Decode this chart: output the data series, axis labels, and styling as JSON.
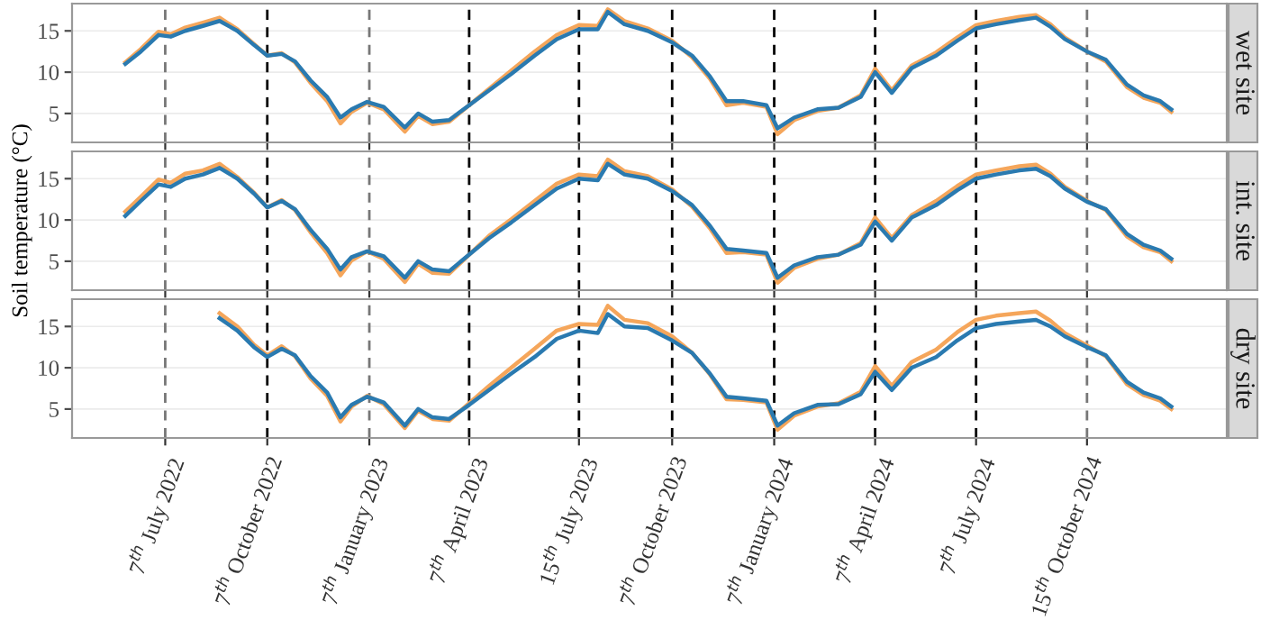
{
  "chart_data": [
    {
      "type": "line",
      "title": "wet site",
      "tick_labels": "y",
      "grid": "y",
      "line_style": "solid",
      "x": [
        "2022-06-01",
        "2022-06-15",
        "2022-07-01",
        "2022-07-12",
        "2022-07-25",
        "2022-08-10",
        "2022-08-25",
        "2022-09-10",
        "2022-09-25",
        "2022-10-07",
        "2022-10-20",
        "2022-11-01",
        "2022-11-15",
        "2022-11-30",
        "2022-12-12",
        "2022-12-22",
        "2023-01-05",
        "2023-01-20",
        "2023-02-08",
        "2023-02-20",
        "2023-03-05",
        "2023-03-20",
        "2023-04-07",
        "2023-04-25",
        "2023-05-15",
        "2023-06-05",
        "2023-06-25",
        "2023-07-15",
        "2023-08-01",
        "2023-08-10",
        "2023-08-25",
        "2023-09-15",
        "2023-10-07",
        "2023-10-25",
        "2023-11-10",
        "2023-11-25",
        "2023-12-10",
        "2023-12-31",
        "2024-01-10",
        "2024-01-25",
        "2024-02-15",
        "2024-03-05",
        "2024-03-25",
        "2024-04-07",
        "2024-04-22",
        "2024-05-10",
        "2024-06-01",
        "2024-06-20",
        "2024-07-07",
        "2024-07-25",
        "2024-08-15",
        "2024-08-30",
        "2024-09-12",
        "2024-09-25",
        "2024-10-15",
        "2024-11-01",
        "2024-11-20",
        "2024-12-05",
        "2024-12-20",
        "2024-12-30"
      ],
      "series": [
        {
          "color": "#f5a65b",
          "values": [
            11.2,
            12.8,
            14.9,
            14.6,
            15.4,
            16,
            16.6,
            15.2,
            13.4,
            12,
            12.3,
            11.2,
            8.7,
            6.5,
            3.8,
            5.2,
            6.3,
            5.5,
            2.8,
            4.7,
            3.7,
            4,
            6,
            8,
            10.2,
            12.5,
            14.5,
            15.7,
            15.6,
            17.6,
            16.2,
            15.3,
            13.8,
            11.8,
            9.2,
            6,
            6.3,
            5.8,
            2.5,
            4.2,
            5.3,
            5.7,
            7.2,
            10.4,
            7.8,
            10.8,
            12.4,
            14.2,
            15.7,
            16.2,
            16.7,
            16.9,
            15.8,
            14.2,
            12.5,
            11.3,
            8.2,
            6.9,
            6.3,
            5.2
          ]
        },
        {
          "color": "#2a7ab0",
          "values": [
            11,
            12.5,
            14.5,
            14.3,
            15,
            15.6,
            16.2,
            15,
            13.3,
            12,
            12.2,
            11.3,
            9,
            7,
            4.5,
            5.5,
            6.4,
            5.8,
            3.3,
            5,
            4,
            4.2,
            6,
            7.8,
            9.8,
            12,
            14,
            15.2,
            15.2,
            17.3,
            15.8,
            15,
            13.6,
            12,
            9.5,
            6.5,
            6.5,
            6,
            3.2,
            4.5,
            5.5,
            5.7,
            7,
            10,
            7.5,
            10.5,
            12,
            13.8,
            15.3,
            15.8,
            16.3,
            16.6,
            15.5,
            14,
            12.5,
            11.5,
            8.5,
            7.2,
            6.5,
            5.5
          ]
        }
      ],
      "xlim": [
        "2022-04-14",
        "2025-02-18"
      ],
      "ylim": [
        1.5,
        18.3
      ],
      "yticks": [
        5,
        10,
        15
      ],
      "xticks": [
        {
          "value": "2022-07-07",
          "label": null
        },
        {
          "value": "2022-10-07",
          "label": null
        },
        {
          "value": "2023-01-07",
          "label": null
        },
        {
          "value": "2023-04-07",
          "label": null
        },
        {
          "value": "2023-07-15",
          "label": null
        },
        {
          "value": "2023-10-07",
          "label": null
        },
        {
          "value": "2024-01-07",
          "label": null
        },
        {
          "value": "2024-04-07",
          "label": null
        },
        {
          "value": "2024-07-07",
          "label": null
        },
        {
          "value": "2024-10-15",
          "label": null
        }
      ],
      "ref_lines": [
        {
          "axis": "x",
          "value": "2022-07-07",
          "color": "#777777",
          "line_style": "dashed"
        },
        {
          "axis": "x",
          "value": "2022-10-07",
          "color": "#000000",
          "line_style": "dashed"
        },
        {
          "axis": "x",
          "value": "2023-01-07",
          "color": "#777777",
          "line_style": "dashed"
        },
        {
          "axis": "x",
          "value": "2023-04-07",
          "color": "#000000",
          "line_style": "dashed"
        },
        {
          "axis": "x",
          "value": "2023-07-15",
          "color": "#000000",
          "line_style": "dashed"
        },
        {
          "axis": "x",
          "value": "2023-10-07",
          "color": "#000000",
          "line_style": "dashed"
        },
        {
          "axis": "x",
          "value": "2024-01-07",
          "color": "#000000",
          "line_style": "dashed"
        },
        {
          "axis": "x",
          "value": "2024-04-07",
          "color": "#000000",
          "line_style": "dashed"
        },
        {
          "axis": "x",
          "value": "2024-07-07",
          "color": "#000000",
          "line_style": "dashed"
        },
        {
          "axis": "x",
          "value": "2024-10-15",
          "color": "#777777",
          "line_style": "dashed"
        }
      ]
    },
    {
      "type": "line",
      "title": "int. site",
      "ylabel": "Soil temperature (°C)",
      "tick_labels": "y",
      "grid": "y",
      "line_style": "solid",
      "x": [
        "2022-06-01",
        "2022-06-15",
        "2022-07-01",
        "2022-07-12",
        "2022-07-25",
        "2022-08-10",
        "2022-08-25",
        "2022-09-10",
        "2022-09-25",
        "2022-10-07",
        "2022-10-20",
        "2022-11-01",
        "2022-11-15",
        "2022-11-30",
        "2022-12-12",
        "2022-12-22",
        "2023-01-05",
        "2023-01-20",
        "2023-02-08",
        "2023-02-20",
        "2023-03-05",
        "2023-03-20",
        "2023-04-07",
        "2023-04-25",
        "2023-05-15",
        "2023-06-05",
        "2023-06-25",
        "2023-07-15",
        "2023-08-01",
        "2023-08-10",
        "2023-08-25",
        "2023-09-15",
        "2023-10-07",
        "2023-10-25",
        "2023-11-10",
        "2023-11-25",
        "2023-12-10",
        "2023-12-31",
        "2024-01-10",
        "2024-01-25",
        "2024-02-15",
        "2024-03-05",
        "2024-03-25",
        "2024-04-07",
        "2024-04-22",
        "2024-05-10",
        "2024-06-01",
        "2024-06-20",
        "2024-07-07",
        "2024-07-25",
        "2024-08-15",
        "2024-08-30",
        "2024-09-12",
        "2024-09-25",
        "2024-10-15",
        "2024-11-01",
        "2024-11-20",
        "2024-12-05",
        "2024-12-20",
        "2024-12-30"
      ],
      "series": [
        {
          "color": "#f5a65b",
          "values": [
            11,
            12.8,
            14.9,
            14.5,
            15.6,
            16,
            16.8,
            15.2,
            13.3,
            11.5,
            12.4,
            11.2,
            8.5,
            6,
            3.3,
            5.1,
            6.2,
            5.3,
            2.5,
            4.7,
            3.6,
            3.5,
            5.8,
            8.1,
            10.1,
            12.3,
            14.4,
            15.5,
            15.3,
            17.3,
            15.9,
            15.3,
            13.7,
            11.6,
            9,
            6,
            6.1,
            5.8,
            2.4,
            4.2,
            5.3,
            5.8,
            7.2,
            10.3,
            7.8,
            10.6,
            12.3,
            14.1,
            15.5,
            16,
            16.5,
            16.7,
            15.6,
            14,
            12.3,
            11.2,
            8,
            6.7,
            6.1,
            5
          ]
        },
        {
          "color": "#2a7ab0",
          "values": [
            10.5,
            12.3,
            14.3,
            14,
            15,
            15.5,
            16.3,
            15,
            13.2,
            11.5,
            12.3,
            11.3,
            8.8,
            6.5,
            4,
            5.5,
            6.2,
            5.6,
            3,
            5,
            4,
            3.8,
            5.8,
            7.8,
            9.7,
            11.8,
            13.8,
            15,
            14.8,
            16.8,
            15.5,
            15,
            13.5,
            11.8,
            9.3,
            6.5,
            6.3,
            6,
            3,
            4.5,
            5.5,
            5.8,
            7,
            9.8,
            7.5,
            10.3,
            11.8,
            13.6,
            15,
            15.5,
            16,
            16.2,
            15.3,
            13.8,
            12.2,
            11.3,
            8.3,
            7,
            6.3,
            5.3
          ]
        }
      ],
      "xlim": [
        "2022-04-14",
        "2025-02-18"
      ],
      "ylim": [
        1.5,
        18.3
      ],
      "yticks": [
        5,
        10,
        15
      ],
      "xticks": [
        {
          "value": "2022-07-07",
          "label": null
        },
        {
          "value": "2022-10-07",
          "label": null
        },
        {
          "value": "2023-01-07",
          "label": null
        },
        {
          "value": "2023-04-07",
          "label": null
        },
        {
          "value": "2023-07-15",
          "label": null
        },
        {
          "value": "2023-10-07",
          "label": null
        },
        {
          "value": "2024-01-07",
          "label": null
        },
        {
          "value": "2024-04-07",
          "label": null
        },
        {
          "value": "2024-07-07",
          "label": null
        },
        {
          "value": "2024-10-15",
          "label": null
        }
      ],
      "ref_lines": [
        {
          "axis": "x",
          "value": "2022-07-07",
          "color": "#777777",
          "line_style": "dashed"
        },
        {
          "axis": "x",
          "value": "2022-10-07",
          "color": "#000000",
          "line_style": "dashed"
        },
        {
          "axis": "x",
          "value": "2023-01-07",
          "color": "#777777",
          "line_style": "dashed"
        },
        {
          "axis": "x",
          "value": "2023-04-07",
          "color": "#000000",
          "line_style": "dashed"
        },
        {
          "axis": "x",
          "value": "2023-07-15",
          "color": "#000000",
          "line_style": "dashed"
        },
        {
          "axis": "x",
          "value": "2023-10-07",
          "color": "#000000",
          "line_style": "dashed"
        },
        {
          "axis": "x",
          "value": "2024-01-07",
          "color": "#000000",
          "line_style": "dashed"
        },
        {
          "axis": "x",
          "value": "2024-04-07",
          "color": "#000000",
          "line_style": "dashed"
        },
        {
          "axis": "x",
          "value": "2024-07-07",
          "color": "#000000",
          "line_style": "dashed"
        },
        {
          "axis": "x",
          "value": "2024-10-15",
          "color": "#777777",
          "line_style": "dashed"
        }
      ]
    },
    {
      "type": "line",
      "title": "dry site",
      "grid": "y",
      "line_style": "solid",
      "series": [
        {
          "color": "#f5a65b",
          "x": [
            "2022-08-25",
            "2022-09-10",
            "2022-09-25",
            "2022-10-07",
            "2022-10-20",
            "2022-11-01",
            "2022-11-15",
            "2022-11-30",
            "2022-12-12",
            "2022-12-22",
            "2023-01-05",
            "2023-01-20",
            "2023-02-08",
            "2023-02-20",
            "2023-03-05",
            "2023-03-20",
            "2023-04-07",
            "2023-04-25",
            "2023-05-15",
            "2023-06-05",
            "2023-06-25",
            "2023-07-15",
            "2023-08-01",
            "2023-08-10",
            "2023-08-25",
            "2023-09-15",
            "2023-10-07",
            "2023-10-25",
            "2023-11-10",
            "2023-11-25",
            "2023-12-10",
            "2023-12-31",
            "2024-01-10",
            "2024-01-25",
            "2024-02-15",
            "2024-03-05",
            "2024-03-25",
            "2024-04-07",
            "2024-04-22",
            "2024-05-10",
            "2024-06-01",
            "2024-06-20",
            "2024-07-07",
            "2024-07-25",
            "2024-08-15",
            "2024-08-30",
            "2024-09-12",
            "2024-09-25",
            "2024-10-15",
            "2024-11-01",
            "2024-11-20",
            "2024-12-05",
            "2024-12-20",
            "2024-12-30"
          ],
          "values": [
            16.6,
            15,
            12.8,
            11.5,
            12.6,
            11.4,
            8.7,
            6.6,
            3.5,
            5.3,
            6.6,
            5.6,
            2.7,
            4.8,
            3.8,
            3.6,
            5.7,
            7.8,
            10,
            12.3,
            14.5,
            15.3,
            15.2,
            17.5,
            15.8,
            15.4,
            13.8,
            11.8,
            9.2,
            6.2,
            6.1,
            5.8,
            2.5,
            4.2,
            5.3,
            5.7,
            7.1,
            10.2,
            7.8,
            10.7,
            12.2,
            14.3,
            15.8,
            16.3,
            16.6,
            16.8,
            15.7,
            14.2,
            12.7,
            11.4,
            8,
            6.7,
            6,
            5
          ]
        },
        {
          "color": "#2a7ab0",
          "x": [
            "2022-08-25",
            "2022-09-10",
            "2022-09-25",
            "2022-10-07",
            "2022-10-20",
            "2022-11-01",
            "2022-11-15",
            "2022-11-30",
            "2022-12-12",
            "2022-12-22",
            "2023-01-05",
            "2023-01-20",
            "2023-02-08",
            "2023-02-20",
            "2023-03-05",
            "2023-03-20",
            "2023-04-07",
            "2023-04-25",
            "2023-05-15",
            "2023-06-05",
            "2023-06-25",
            "2023-07-15",
            "2023-08-01",
            "2023-08-10",
            "2023-08-25",
            "2023-09-15",
            "2023-10-07",
            "2023-10-25",
            "2023-11-10",
            "2023-11-25",
            "2023-12-10",
            "2023-12-31",
            "2024-01-10",
            "2024-01-25",
            "2024-02-15",
            "2024-03-05",
            "2024-03-25",
            "2024-04-07",
            "2024-04-22",
            "2024-05-10",
            "2024-06-01",
            "2024-06-20",
            "2024-07-07",
            "2024-07-25",
            "2024-08-15",
            "2024-08-30",
            "2024-09-12",
            "2024-09-25",
            "2024-10-15",
            "2024-11-01",
            "2024-11-20",
            "2024-12-05",
            "2024-12-20",
            "2024-12-30"
          ],
          "values": [
            16,
            14.5,
            12.5,
            11.3,
            12.3,
            11.5,
            9,
            7,
            4,
            5.5,
            6.5,
            5.8,
            3,
            5,
            4,
            3.8,
            5.5,
            7.3,
            9.3,
            11.3,
            13.5,
            14.5,
            14.2,
            16.5,
            15,
            14.8,
            13.3,
            11.8,
            9.3,
            6.5,
            6.3,
            6,
            3,
            4.5,
            5.5,
            5.6,
            6.8,
            9.5,
            7.3,
            10,
            11.3,
            13.3,
            14.8,
            15.3,
            15.6,
            15.8,
            15,
            13.8,
            12.5,
            11.5,
            8.3,
            7,
            6.3,
            5.3
          ]
        }
      ],
      "xlim": [
        "2022-04-14",
        "2025-02-18"
      ],
      "ylim": [
        1.5,
        18.3
      ],
      "yticks": [
        5,
        10,
        15
      ],
      "xticks": [
        {
          "value": "2022-07-07",
          "label": "7$^{th}$ July 2022"
        },
        {
          "value": "2022-10-07",
          "label": "7$^{th}$ October 2022"
        },
        {
          "value": "2023-01-07",
          "label": "7$^{th}$ January 2023"
        },
        {
          "value": "2023-04-07",
          "label": "7$^{th}$ April 2023"
        },
        {
          "value": "2023-07-15",
          "label": "15$^{th}$ July 2023"
        },
        {
          "value": "2023-10-07",
          "label": "7$^{th}$ October 2023"
        },
        {
          "value": "2024-01-07",
          "label": "7$^{th}$ January 2024"
        },
        {
          "value": "2024-04-07",
          "label": "7$^{th}$ April 2024"
        },
        {
          "value": "2024-07-07",
          "label": "7$^{th}$ July 2024"
        },
        {
          "value": "2024-10-15",
          "label": "15$^{th}$ October 2024"
        }
      ],
      "ref_lines": [
        {
          "axis": "x",
          "value": "2022-07-07",
          "color": "#777777",
          "line_style": "dashed"
        },
        {
          "axis": "x",
          "value": "2022-10-07",
          "color": "#000000",
          "line_style": "dashed"
        },
        {
          "axis": "x",
          "value": "2023-01-07",
          "color": "#777777",
          "line_style": "dashed"
        },
        {
          "axis": "x",
          "value": "2023-04-07",
          "color": "#000000",
          "line_style": "dashed"
        },
        {
          "axis": "x",
          "value": "2023-07-15",
          "color": "#000000",
          "line_style": "dashed"
        },
        {
          "axis": "x",
          "value": "2023-10-07",
          "color": "#000000",
          "line_style": "dashed"
        },
        {
          "axis": "x",
          "value": "2024-01-07",
          "color": "#000000",
          "line_style": "dashed"
        },
        {
          "axis": "x",
          "value": "2024-04-07",
          "color": "#000000",
          "line_style": "dashed"
        },
        {
          "axis": "x",
          "value": "2024-07-07",
          "color": "#000000",
          "line_style": "dashed"
        },
        {
          "axis": "x",
          "value": "2024-10-15",
          "color": "#777777",
          "line_style": "dashed"
        }
      ]
    }
  ]
}
